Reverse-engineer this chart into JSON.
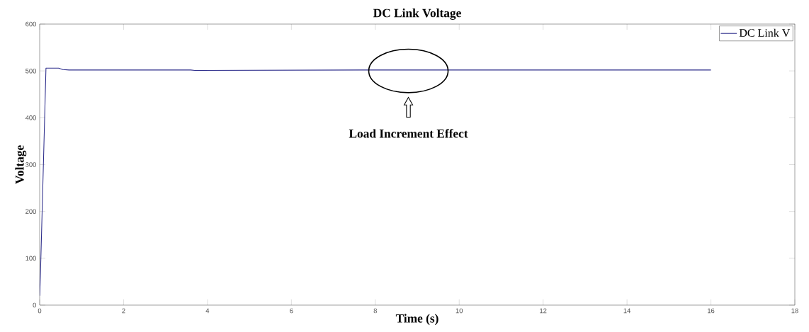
{
  "chart_data": {
    "type": "line",
    "title": "DC Link Voltage",
    "xlabel": "Time (s)",
    "ylabel": "Voltage",
    "xlim": [
      0,
      18
    ],
    "xticks": [
      0,
      2,
      4,
      6,
      8,
      10,
      12,
      14,
      16,
      18
    ],
    "ylim": [
      0,
      600
    ],
    "yticks": [
      0,
      100,
      200,
      300,
      400,
      500,
      600
    ],
    "series": [
      {
        "name": "DC Link V",
        "color": "#2e2e8c",
        "x": [
          0,
          0.02,
          0.15,
          0.45,
          0.55,
          0.7,
          3.6,
          3.7,
          8.0,
          9.2,
          16
        ],
        "values": [
          20,
          70,
          506,
          506,
          503,
          502,
          502,
          501,
          502,
          502,
          502
        ]
      }
    ],
    "annotations": [
      "Load Increment Effect"
    ],
    "legend": "top right",
    "grid": false,
    "marker": "none",
    "line_style": "solid"
  }
}
